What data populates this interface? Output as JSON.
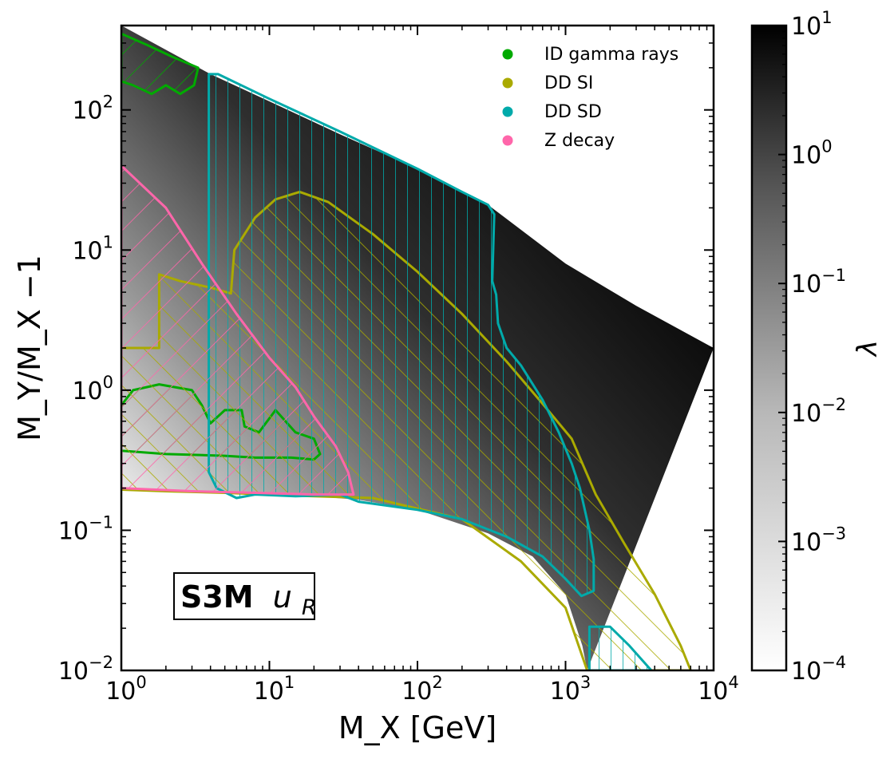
{
  "chart_data": {
    "type": "scatter",
    "title": "",
    "xlabel": "M_X [GeV]",
    "ylabel": "M_Y/M_X −1",
    "x_scale": "log",
    "y_scale": "log",
    "xlim": [
      1,
      10000
    ],
    "ylim": [
      0.01,
      400
    ],
    "x_ticks": [
      {
        "value": 1,
        "base": "10",
        "exp": "0"
      },
      {
        "value": 10,
        "base": "10",
        "exp": "1"
      },
      {
        "value": 100,
        "base": "10",
        "exp": "2"
      },
      {
        "value": 1000,
        "base": "10",
        "exp": "3"
      },
      {
        "value": 10000,
        "base": "10",
        "exp": "4"
      }
    ],
    "y_ticks": [
      {
        "value": 0.01,
        "base": "10",
        "exp": "−2"
      },
      {
        "value": 0.1,
        "base": "10",
        "exp": "−1"
      },
      {
        "value": 1,
        "base": "10",
        "exp": "0"
      },
      {
        "value": 10,
        "base": "10",
        "exp": "1"
      },
      {
        "value": 100,
        "base": "10",
        "exp": "2"
      }
    ],
    "colorbar": {
      "label": "λ",
      "scale": "log",
      "range": [
        0.0001,
        10
      ],
      "colormap": "white-to-black",
      "ticks": [
        {
          "value": 0.0001,
          "base": "10",
          "exp": "−4"
        },
        {
          "value": 0.001,
          "base": "10",
          "exp": "−3"
        },
        {
          "value": 0.01,
          "base": "10",
          "exp": "−2"
        },
        {
          "value": 0.1,
          "base": "10",
          "exp": "−1"
        },
        {
          "value": 1,
          "base": "10",
          "exp": "0"
        },
        {
          "value": 10,
          "base": "10",
          "exp": "1"
        }
      ]
    },
    "annotation": {
      "bold": "S3M",
      "math": "u",
      "sub": "R"
    },
    "legend_position": "top-right",
    "series": [
      {
        "name": "ID gamma rays",
        "color": "#00aa00",
        "hatch": "/",
        "regions": [
          [
            [
              1,
              350
            ],
            [
              1.5,
              290
            ],
            [
              2.2,
              240
            ],
            [
              3.3,
              200
            ],
            [
              3.1,
              150
            ],
            [
              2.5,
              130
            ],
            [
              2,
              150
            ],
            [
              1.6,
              130
            ],
            [
              1.2,
              150
            ],
            [
              1,
              160
            ]
          ],
          [
            [
              1,
              0.78
            ],
            [
              1.2,
              1.0
            ],
            [
              1.8,
              1.1
            ],
            [
              3.0,
              1.0
            ],
            [
              3.5,
              0.78
            ],
            [
              4.0,
              0.58
            ],
            [
              5.0,
              0.72
            ],
            [
              6.5,
              0.72
            ],
            [
              6.8,
              0.55
            ],
            [
              8.5,
              0.5
            ],
            [
              11,
              0.72
            ],
            [
              15,
              0.5
            ],
            [
              20,
              0.45
            ],
            [
              22,
              0.35
            ],
            [
              20,
              0.32
            ],
            [
              14,
              0.33
            ],
            [
              8,
              0.33
            ],
            [
              5,
              0.34
            ],
            [
              2,
              0.35
            ],
            [
              1,
              0.37
            ]
          ]
        ]
      },
      {
        "name": "DD SI",
        "color": "#aaaa00",
        "hatch": "\\",
        "regions": [
          [
            [
              1,
              2.0
            ],
            [
              1.8,
              2.0
            ],
            [
              1.8,
              6.7
            ],
            [
              2.5,
              6.0
            ],
            [
              4.0,
              5.4
            ],
            [
              5.5,
              4.9
            ],
            [
              5.8,
              10
            ],
            [
              8,
              17
            ],
            [
              11,
              23
            ],
            [
              16,
              26
            ],
            [
              25,
              22
            ],
            [
              50,
              13
            ],
            [
              100,
              7
            ],
            [
              200,
              3.5
            ],
            [
              400,
              1.6
            ],
            [
              700,
              0.8
            ],
            [
              1100,
              0.45
            ],
            [
              1600,
              0.18
            ],
            [
              2500,
              0.08
            ],
            [
              4000,
              0.035
            ],
            [
              6000,
              0.015
            ],
            [
              7000,
              0.01
            ],
            [
              1400,
              0.01
            ],
            [
              1000,
              0.028
            ],
            [
              500,
              0.06
            ],
            [
              200,
              0.12
            ],
            [
              50,
              0.17
            ],
            [
              20,
              0.175
            ],
            [
              5,
              0.185
            ],
            [
              2,
              0.19
            ],
            [
              1,
              0.195
            ]
          ]
        ]
      },
      {
        "name": "DD SD",
        "color": "#00aaaa",
        "hatch": "|",
        "regions": [
          [
            [
              3.9,
              180
            ],
            [
              4.5,
              180
            ],
            [
              10,
              120
            ],
            [
              30,
              70
            ],
            [
              100,
              38
            ],
            [
              200,
              26
            ],
            [
              300,
              21
            ],
            [
              330,
              18
            ],
            [
              320,
              6.0
            ],
            [
              340,
              4.8
            ],
            [
              350,
              3.0
            ],
            [
              400,
              2.0
            ],
            [
              500,
              1.5
            ],
            [
              700,
              0.85
            ],
            [
              900,
              0.5
            ],
            [
              1100,
              0.3
            ],
            [
              1250,
              0.2
            ],
            [
              1450,
              0.1
            ],
            [
              1550,
              0.062
            ],
            [
              1550,
              0.037
            ],
            [
              1280,
              0.034
            ],
            [
              1000,
              0.045
            ],
            [
              700,
              0.065
            ],
            [
              400,
              0.09
            ],
            [
              200,
              0.12
            ],
            [
              100,
              0.14
            ],
            [
              40,
              0.16
            ],
            [
              30,
              0.18
            ],
            [
              15,
              0.175
            ],
            [
              8,
              0.18
            ],
            [
              6,
              0.17
            ],
            [
              4.4,
              0.2
            ],
            [
              3.9,
              0.26
            ]
          ],
          [
            [
              1450,
              0.0205
            ],
            [
              2000,
              0.0205
            ],
            [
              2700,
              0.015
            ],
            [
              3800,
              0.01
            ],
            [
              1450,
              0.01
            ]
          ]
        ]
      },
      {
        "name": "Z decay",
        "color": "#ff66aa",
        "hatch": "/",
        "regions": [
          [
            [
              1,
              40
            ],
            [
              2,
              20
            ],
            [
              3.5,
              8
            ],
            [
              6,
              3.5
            ],
            [
              10,
              1.7
            ],
            [
              15,
              1.05
            ],
            [
              20,
              0.65
            ],
            [
              28,
              0.4
            ],
            [
              34,
              0.26
            ],
            [
              37,
              0.18
            ],
            [
              20,
              0.18
            ],
            [
              8,
              0.185
            ],
            [
              3,
              0.19
            ],
            [
              1,
              0.2
            ]
          ]
        ]
      }
    ],
    "background_region": {
      "upper_boundary": [
        [
          1,
          400
        ],
        [
          4,
          180
        ],
        [
          10,
          115
        ],
        [
          30,
          67
        ],
        [
          100,
          38
        ],
        [
          300,
          21
        ],
        [
          1000,
          8
        ],
        [
          3000,
          4
        ],
        [
          10000,
          2
        ]
      ],
      "lower_boundary": [
        [
          1,
          0.2
        ],
        [
          10,
          0.185
        ],
        [
          40,
          0.165
        ],
        [
          100,
          0.14
        ],
        [
          300,
          0.095
        ],
        [
          600,
          0.065
        ],
        [
          1000,
          0.035
        ],
        [
          1300,
          0.015
        ],
        [
          1400,
          0.01
        ]
      ],
      "peak_lambda_at": [
        [
          1,
          150
        ],
        [
          10000,
          2
        ]
      ]
    }
  }
}
